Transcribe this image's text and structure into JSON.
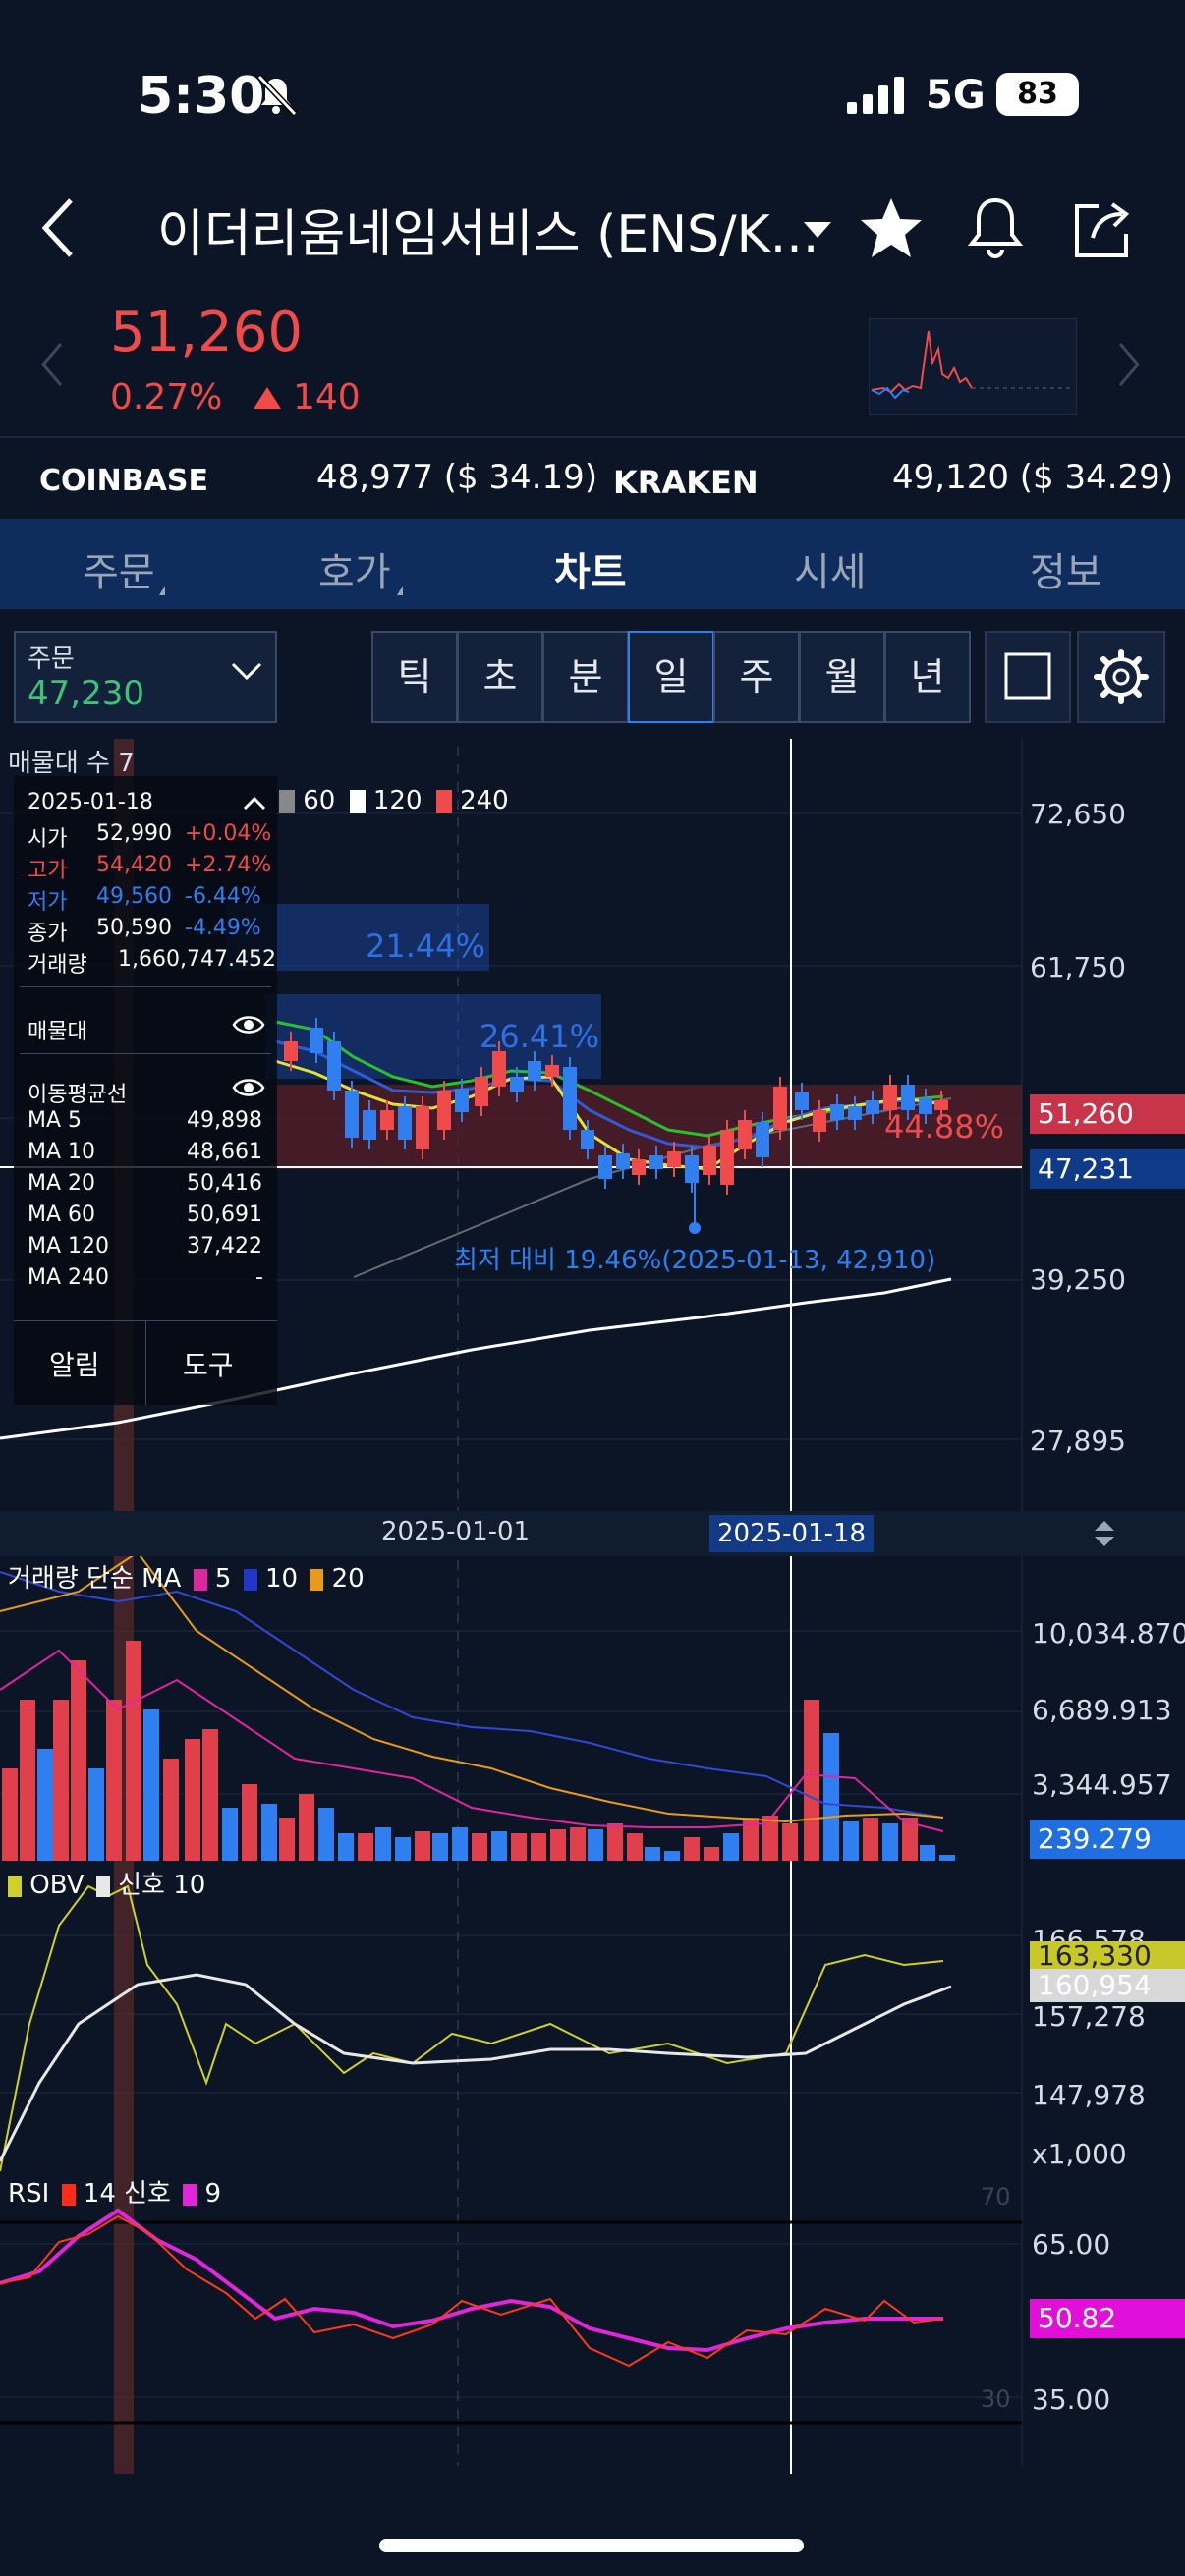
{
  "status": {
    "time": "5:30",
    "network": "5G",
    "battery": "83"
  },
  "header": {
    "title": "이더리움네임서비스 (ENS/K..."
  },
  "price": {
    "value": "51,260",
    "percent": "0.27%",
    "change": "140"
  },
  "exchanges": [
    {
      "name": "COINBASE",
      "value": "48,977 ($ 34.19)"
    },
    {
      "name": "KRAKEN",
      "value": "49,120 ($ 34.29)"
    }
  ],
  "tabs": [
    "주문",
    "호가",
    "차트",
    "시세",
    "정보"
  ],
  "order": {
    "label": "주문",
    "value": "47,230"
  },
  "periods": [
    "틱",
    "초",
    "분",
    "일",
    "주",
    "월",
    "년"
  ],
  "main_chart": {
    "title": "매물대 수 7",
    "legend_tail": [
      "60",
      "120",
      "240"
    ],
    "yticks": [
      "72,650",
      "61,750",
      "39,250",
      "27,895"
    ],
    "current_price": "51,260",
    "line_price": "47,231",
    "pct_labels": [
      "21.44%",
      "26.41%",
      "44.88%"
    ],
    "min_label": "최저 대비 19.46%(2025-01-13, 42,910)",
    "info": {
      "date": "2025-01-18",
      "rows": [
        {
          "k": "시가",
          "v": "52,990",
          "p": "+0.04%"
        },
        {
          "k": "고가",
          "v": "54,420",
          "p": "+2.74%"
        },
        {
          "k": "저가",
          "v": "49,560",
          "p": "-6.44%"
        },
        {
          "k": "종가",
          "v": "50,590",
          "p": "-4.49%"
        }
      ],
      "volume_label": "거래량",
      "volume": "1,660,747.452",
      "maemul": "매물대",
      "ma_title": "이동평균선",
      "ma": [
        {
          "k": "MA 5",
          "v": "49,898"
        },
        {
          "k": "MA 10",
          "v": "48,661"
        },
        {
          "k": "MA 20",
          "v": "50,416"
        },
        {
          "k": "MA 60",
          "v": "50,691"
        },
        {
          "k": "MA 120",
          "v": "37,422"
        },
        {
          "k": "MA 240",
          "v": "-"
        }
      ],
      "alarm": "알림",
      "tool": "도구"
    }
  },
  "dates": {
    "d1": "2025-01-01",
    "d2": "2025-01-18"
  },
  "volume_chart": {
    "legend": "거래량 단순 MA",
    "ma": [
      "5",
      "10",
      "20"
    ],
    "yticks": [
      "10,034.870",
      "6,689.913",
      "3,344.957"
    ],
    "current": "239.279"
  },
  "obv_chart": {
    "legend_a": "OBV",
    "legend_b": "신호 10",
    "yticks": [
      "166,578",
      "157,278",
      "147,978",
      "x1,000"
    ],
    "tags": [
      "163,330",
      "160,954"
    ]
  },
  "rsi_chart": {
    "legend_a": "RSI",
    "legend_b": "14",
    "legend_c": "신호",
    "legend_d": "9",
    "yticks": [
      "65.00",
      "35.00"
    ],
    "levels": [
      "70",
      "30"
    ],
    "current": "50.82"
  },
  "colors": {
    "up": "#f04a4a",
    "down": "#2f7ff0",
    "bg": "#0b1526",
    "accent": "#2f7ff0"
  }
}
